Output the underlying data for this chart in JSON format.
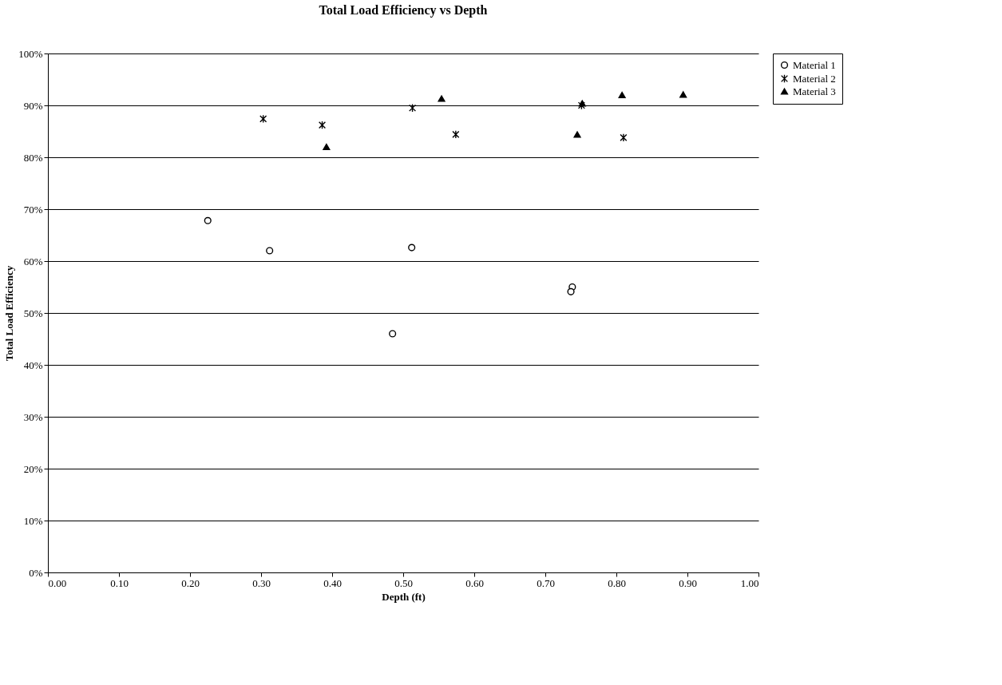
{
  "chart_data": {
    "type": "scatter",
    "title": "Total Load Efficiency vs Depth",
    "xlabel": "Depth (ft)",
    "ylabel": "Total Load Efficiency",
    "xlim": [
      0,
      1
    ],
    "ylim": [
      0,
      1
    ],
    "xticks": [
      {
        "value": 0,
        "label": "0.00"
      },
      {
        "value": 0.1,
        "label": "0.10"
      },
      {
        "value": 0.2,
        "label": "0.20"
      },
      {
        "value": 0.3,
        "label": "0.30"
      },
      {
        "value": 0.4,
        "label": "0.40"
      },
      {
        "value": 0.5,
        "label": "0.50"
      },
      {
        "value": 0.6,
        "label": "0.60"
      },
      {
        "value": 0.7,
        "label": "0.70"
      },
      {
        "value": 0.8,
        "label": "0.80"
      },
      {
        "value": 0.9,
        "label": "0.90"
      },
      {
        "value": 1,
        "label": "1.00"
      }
    ],
    "yticks": [
      {
        "value": 0,
        "label": "0%"
      },
      {
        "value": 0.1,
        "label": "10%"
      },
      {
        "value": 0.2,
        "label": "20%"
      },
      {
        "value": 0.3,
        "label": "30%"
      },
      {
        "value": 0.4,
        "label": "40%"
      },
      {
        "value": 0.5,
        "label": "50%"
      },
      {
        "value": 0.6,
        "label": "60%"
      },
      {
        "value": 0.7,
        "label": "70%"
      },
      {
        "value": 0.8,
        "label": "80%"
      },
      {
        "value": 0.9,
        "label": "90%"
      },
      {
        "value": 1,
        "label": "100%"
      }
    ],
    "grid": "y",
    "legend": "right",
    "series": [
      {
        "name": "Material 1",
        "color": "#000000",
        "marker": "circle",
        "x": [
          0.225,
          0.312,
          0.512,
          0.485,
          0.738,
          0.736
        ],
        "values": [
          0.678,
          0.62,
          0.626,
          0.46,
          0.55,
          0.541
        ]
      },
      {
        "name": "Material 2",
        "color": "#000000",
        "marker": "cross",
        "x": [
          0.303,
          0.386,
          0.513,
          0.574,
          0.751,
          0.81
        ],
        "values": [
          0.874,
          0.862,
          0.895,
          0.844,
          0.9,
          0.838
        ]
      },
      {
        "name": "Material 3",
        "color": "#000000",
        "marker": "triangle",
        "x": [
          0.392,
          0.554,
          0.752,
          0.745,
          0.808,
          0.894
        ],
        "values": [
          0.82,
          0.913,
          0.904,
          0.844,
          0.92,
          0.921
        ]
      }
    ]
  }
}
